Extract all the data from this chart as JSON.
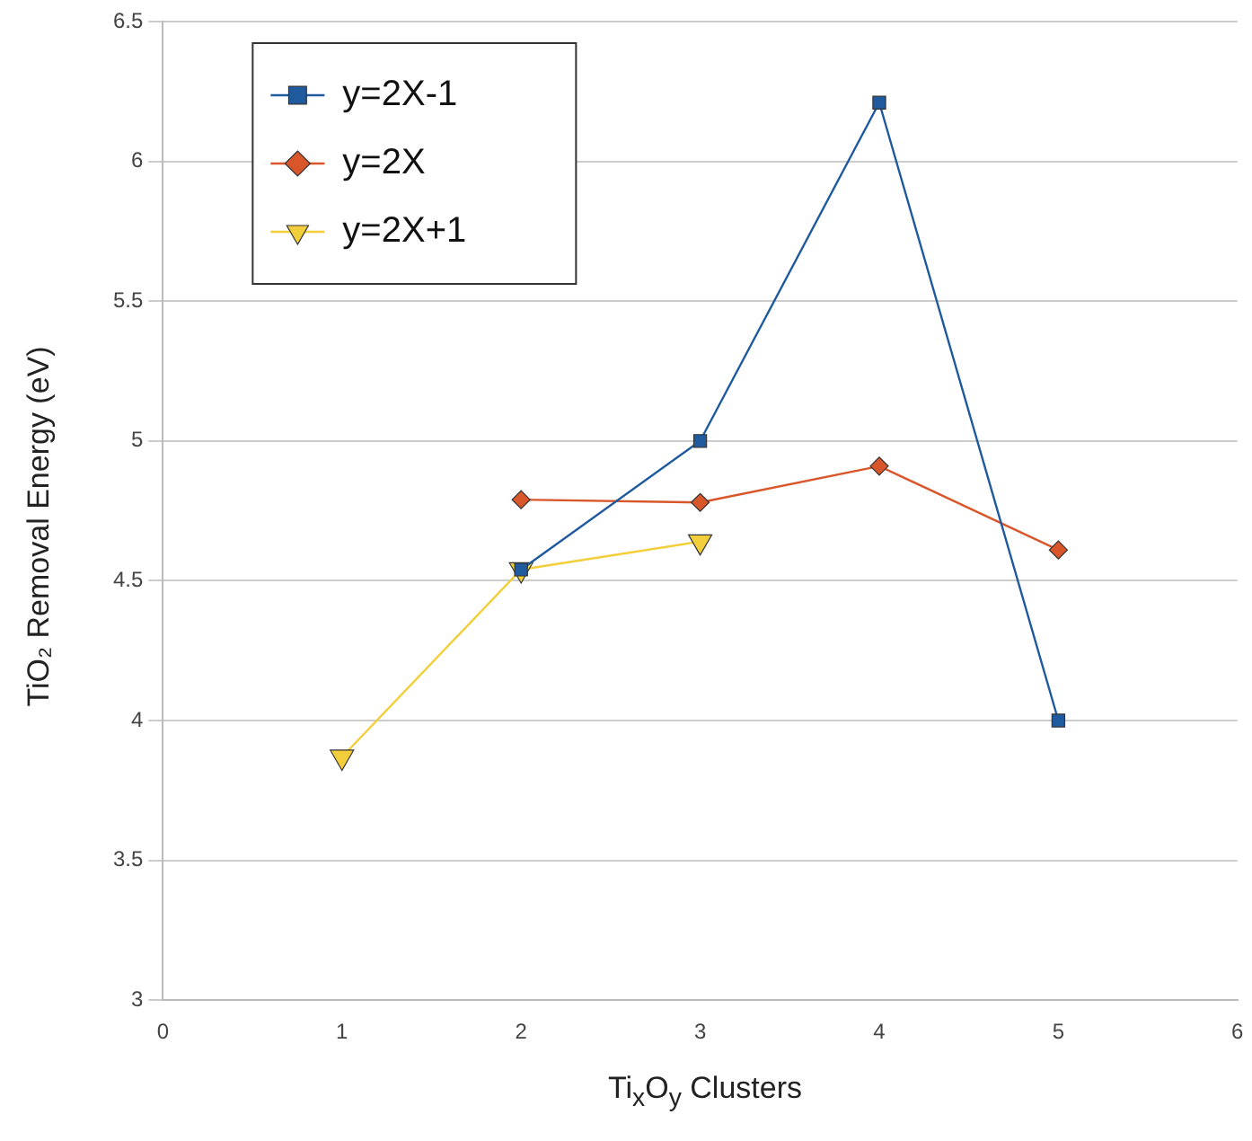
{
  "chart_data": {
    "type": "line",
    "xlabel": "Ti$_{x}$O$_{y}$ Clusters",
    "ylabel": "TiO₂ Removal Energy (eV)",
    "xlim": [
      0,
      6
    ],
    "xticks": [
      0,
      1,
      2,
      3,
      4,
      5,
      6
    ],
    "ylim": [
      3,
      6.5
    ],
    "yticks": [
      3,
      3.5,
      4,
      4.5,
      5,
      5.5,
      6,
      6.5
    ],
    "grid": "y",
    "legend": "top left",
    "series": [
      {
        "name": "y=2X-1",
        "color": "#1f5a9e",
        "marker": "square",
        "x": [
          2,
          3,
          4,
          5
        ],
        "values": [
          4.54,
          5.0,
          6.21,
          4.0
        ]
      },
      {
        "name": "y=2X",
        "color": "#d9552a",
        "marker": "diamond",
        "x": [
          2,
          3,
          4,
          5
        ],
        "values": [
          4.79,
          4.78,
          4.91,
          4.61
        ]
      },
      {
        "name": "y=2X+1",
        "color": "#f2cf3a",
        "marker": "triangle-down",
        "x": [
          1,
          2,
          3
        ],
        "values": [
          3.87,
          4.54,
          4.64
        ]
      }
    ]
  }
}
